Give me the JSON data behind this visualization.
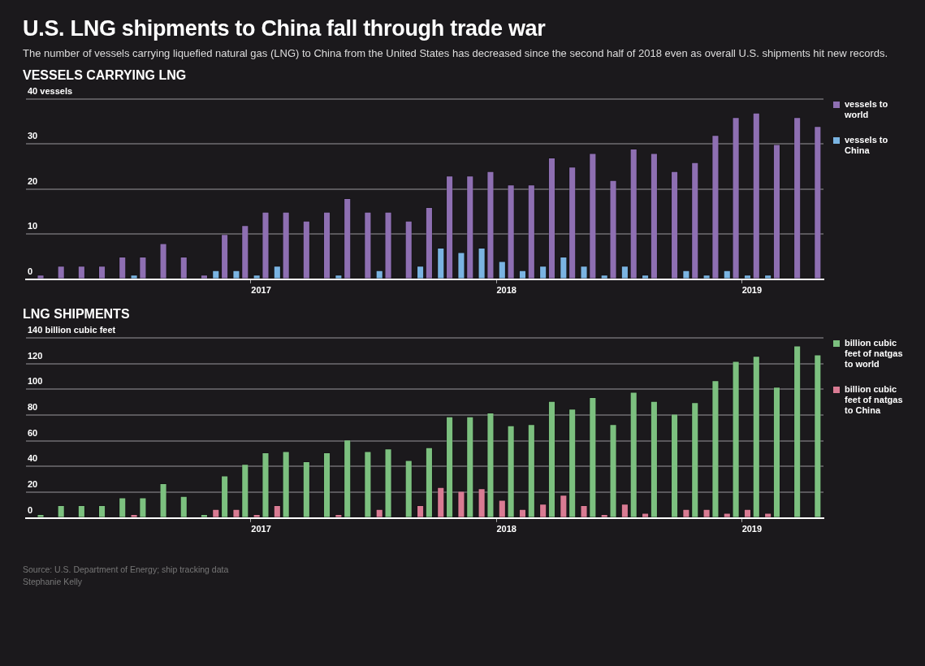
{
  "chart_data": [
    {
      "type": "other",
      "title": "U.S. LNG shipments to China fall through trade war",
      "subtitle": "The number of vessels carrying liquefied natural gas (LNG) to China from the United States has decreased since the second half of 2018 even as overall U.S. shipments hit new records."
    },
    {
      "type": "bar",
      "title": "VESSELS CARRYING LNG",
      "categories": [
        null,
        null,
        null,
        null,
        null,
        null,
        null,
        null,
        null,
        null,
        null,
        "2017",
        null,
        null,
        null,
        null,
        null,
        null,
        null,
        null,
        null,
        null,
        null,
        "2018",
        null,
        null,
        null,
        null,
        null,
        null,
        null,
        null,
        null,
        null,
        null,
        "2019",
        null,
        null,
        null
      ],
      "series": [
        {
          "name": "vessels to world",
          "color": "#8e6fb2",
          "values": [
            1,
            3,
            3,
            3,
            5,
            5,
            8,
            5,
            1,
            10,
            12,
            15,
            15,
            13,
            15,
            18,
            15,
            15,
            13,
            16,
            23,
            23,
            24,
            21,
            21,
            27,
            25,
            28,
            22,
            29,
            28,
            24,
            26,
            32,
            36,
            37,
            30,
            36,
            34
          ]
        },
        {
          "name": "vessels to China",
          "color": "#7ab4e2",
          "values": [
            0,
            0,
            0,
            0,
            0,
            1,
            0,
            0,
            0,
            2,
            2,
            1,
            3,
            0,
            0,
            1,
            0,
            2,
            0,
            3,
            7,
            6,
            7,
            4,
            2,
            3,
            5,
            3,
            1,
            3,
            1,
            0,
            2,
            1,
            2,
            1,
            1,
            0,
            0
          ]
        }
      ],
      "ylim": [
        0,
        40
      ],
      "yticks": [
        0,
        10,
        20,
        30,
        {
          "value": 40,
          "label": "40 vessels"
        }
      ],
      "grid": "y",
      "legend": "right"
    },
    {
      "type": "bar",
      "title": "LNG SHIPMENTS",
      "categories": [
        null,
        null,
        null,
        null,
        null,
        null,
        null,
        null,
        null,
        null,
        null,
        "2017",
        null,
        null,
        null,
        null,
        null,
        null,
        null,
        null,
        null,
        null,
        null,
        "2018",
        null,
        null,
        null,
        null,
        null,
        null,
        null,
        null,
        null,
        null,
        null,
        "2019",
        null,
        null,
        null
      ],
      "series": [
        {
          "name": "billion cubic feet of natgas to world",
          "color": "#7cc07f",
          "values": [
            3,
            10,
            10,
            10,
            16,
            16,
            27,
            17,
            3,
            33,
            42,
            51,
            52,
            44,
            51,
            61,
            52,
            54,
            45,
            55,
            79,
            79,
            82,
            72,
            73,
            91,
            85,
            94,
            73,
            98,
            91,
            81,
            90,
            107,
            122,
            126,
            102,
            134,
            127
          ]
        },
        {
          "name": "billion cubic feet of natgas to China",
          "color": "#d97b93",
          "values": [
            0,
            0,
            0,
            0,
            0,
            3,
            0,
            0,
            0,
            7,
            7,
            3,
            10,
            0,
            0,
            3,
            0,
            7,
            0,
            10,
            24,
            21,
            23,
            14,
            7,
            11,
            18,
            10,
            3,
            11,
            4,
            0,
            7,
            7,
            4,
            7,
            4,
            0,
            0
          ]
        }
      ],
      "ylim": [
        0,
        140
      ],
      "yticks": [
        0,
        20,
        40,
        60,
        80,
        100,
        120,
        {
          "value": 140,
          "label": "140 billion cubic feet"
        }
      ],
      "grid": "y",
      "legend": "right",
      "annotations": [
        "Source: U.S. Department of Energy; ship tracking data",
        "Stephanie Kelly"
      ]
    }
  ]
}
